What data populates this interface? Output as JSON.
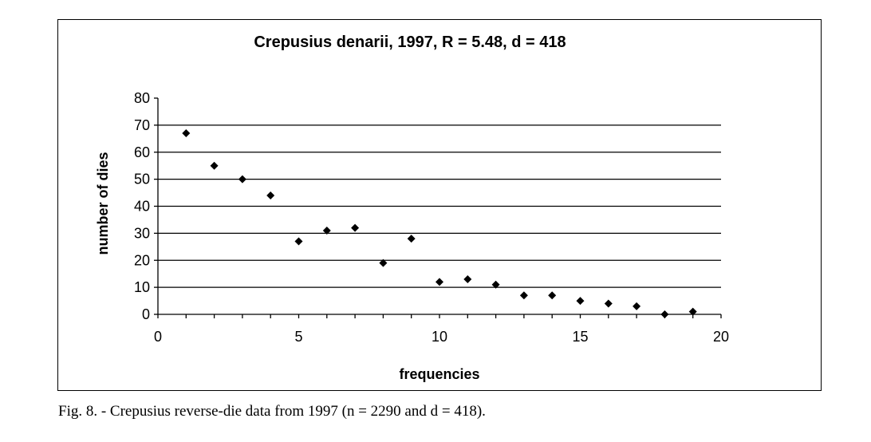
{
  "chart_data": {
    "type": "scatter",
    "title": "Crepusius denarii, 1997, R = 5.48, d = 418",
    "xlabel": "frequencies",
    "ylabel": "number of dies",
    "xlim": [
      0,
      20
    ],
    "ylim": [
      0,
      80
    ],
    "xticks": [
      0,
      5,
      10,
      15,
      20
    ],
    "yticks": [
      0,
      10,
      20,
      30,
      40,
      50,
      60,
      70,
      80
    ],
    "grid": "horizontal",
    "legend": "none",
    "marker": "diamond",
    "color": "#000000",
    "x": [
      1,
      2,
      3,
      4,
      5,
      6,
      7,
      8,
      9,
      10,
      11,
      12,
      13,
      14,
      15,
      16,
      17,
      18,
      19
    ],
    "y": [
      67,
      55,
      50,
      44,
      27,
      31,
      32,
      19,
      28,
      12,
      13,
      11,
      7,
      7,
      5,
      4,
      3,
      0,
      1
    ]
  },
  "caption": "Fig. 8. - Crepusius reverse-die data from 1997 (n = 2290 and d = 418)."
}
